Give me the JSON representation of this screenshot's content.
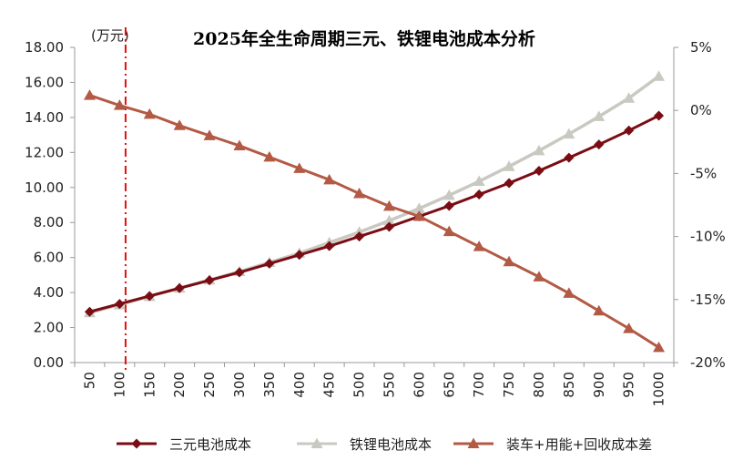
{
  "chart_data": {
    "type": "line",
    "title": "2025年全生命周期三元、铁锂电池成本分析",
    "y_unit_label": "(万元)",
    "categories": [
      "50",
      "100",
      "150",
      "200",
      "250",
      "300",
      "350",
      "400",
      "450",
      "500",
      "550",
      "600",
      "650",
      "700",
      "750",
      "800",
      "850",
      "900",
      "950",
      "1000"
    ],
    "y_left": {
      "min": 0,
      "max": 18,
      "step": 2,
      "tick_labels": [
        "0.00",
        "2.00",
        "4.00",
        "6.00",
        "8.00",
        "10.00",
        "12.00",
        "14.00",
        "16.00",
        "18.00"
      ]
    },
    "y_right": {
      "min": -20,
      "max": 5,
      "step": 5,
      "tick_labels": [
        "-20%",
        "-15%",
        "-10%",
        "-5%",
        "0%",
        "5%"
      ]
    },
    "reference_line": {
      "category_position": 1.2,
      "color": "#e01010",
      "style": "dash-dot"
    },
    "grid": false,
    "legend_position": "bottom",
    "series": [
      {
        "name": "三元电池成本",
        "axis": "left",
        "marker": "diamond",
        "color": "#7a0c14",
        "values": [
          2.9,
          3.35,
          3.8,
          4.25,
          4.7,
          5.15,
          5.65,
          6.15,
          6.65,
          7.2,
          7.75,
          8.35,
          8.95,
          9.6,
          10.25,
          10.95,
          11.7,
          12.45,
          13.25,
          14.1
        ]
      },
      {
        "name": "铁锂电池成本",
        "axis": "left",
        "marker": "triangle",
        "color": "#c9c9c2",
        "values": [
          2.85,
          3.3,
          3.78,
          4.25,
          4.72,
          5.2,
          5.72,
          6.25,
          6.85,
          7.45,
          8.1,
          8.8,
          9.55,
          10.35,
          11.2,
          12.1,
          13.05,
          14.05,
          15.1,
          16.35
        ]
      },
      {
        "name": "装车+用能+回收成本差",
        "axis": "right",
        "marker": "triangle",
        "color": "#b35a45",
        "values": [
          1.2,
          0.4,
          -0.3,
          -1.2,
          -2,
          -2.8,
          -3.7,
          -4.6,
          -5.5,
          -6.6,
          -7.6,
          -8.4,
          -9.6,
          -10.8,
          -12,
          -13.2,
          -14.5,
          -15.9,
          -17.3,
          -18.8
        ]
      }
    ]
  }
}
